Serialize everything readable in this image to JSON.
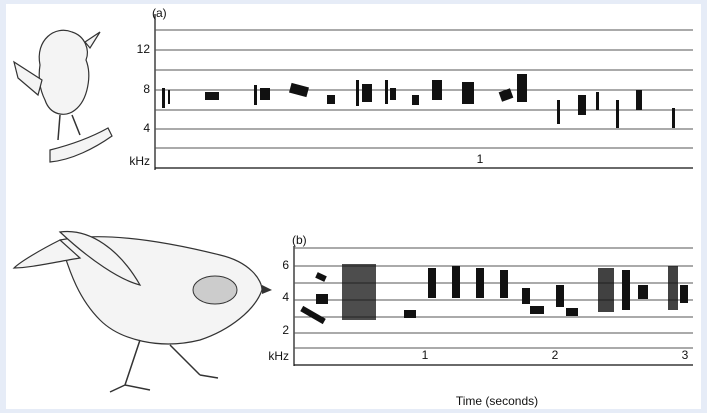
{
  "panel_a": {
    "label": "(a)",
    "y_ticks": [
      "12",
      "8",
      "4"
    ],
    "y_unit": "kHz",
    "x_ticks": [
      "1"
    ]
  },
  "panel_b": {
    "label": "(b)",
    "y_ticks": [
      "6",
      "4",
      "2"
    ],
    "y_unit": "kHz",
    "x_ticks": [
      "1",
      "2",
      "3"
    ]
  },
  "x_axis_title": "Time (seconds)"
}
